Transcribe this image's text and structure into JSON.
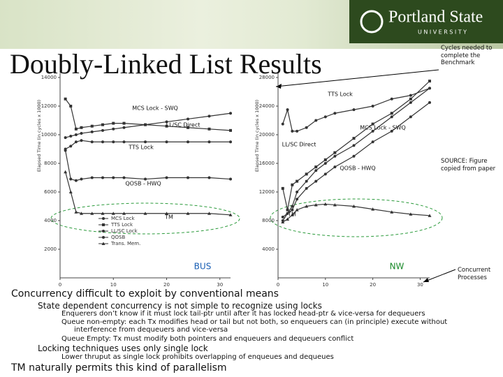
{
  "slide": {
    "title": "Doubly-Linked List Results",
    "logo": {
      "name": "Portland State",
      "sub": "UNIVERSITY"
    },
    "notes": [
      "Cycles needed to complete the Benchmark",
      "SOURCE: Figure copied from paper",
      "Concurrent Processes"
    ],
    "bullets": [
      {
        "level": 0,
        "text": "Concurrency difficult to exploit by conventional means"
      },
      {
        "level": 1,
        "text": "State dependent concurrency is not simple to recognize using locks"
      },
      {
        "level": 2,
        "text": "Enquerers don’t know if it must lock tail-ptr until after it has locked head-ptr & vice-versa for dequeuers"
      },
      {
        "level": 2,
        "text": "Queue non-empty: each Tx modifies head or tail but not both, so enqueuers can (in principle) execute without interference from dequeuers and vice-versa"
      },
      {
        "level": 2,
        "text": "Queue Empty: Tx must modify both pointers and enqueuers and dequeuers conflict"
      },
      {
        "level": 1,
        "text": "Locking techniques uses only single lock"
      },
      {
        "level": 2,
        "text": "Lower thruput as single lock prohibits overlapping of enqueues and dequeues"
      },
      {
        "level": 0,
        "text": "TM naturally permits this kind of parallelism"
      }
    ]
  },
  "chart_data": [
    {
      "type": "line",
      "ylabel": "Elapsed Time (in cycles x 1000)",
      "xlim": [
        0,
        32
      ],
      "xticks": [
        0,
        10,
        20,
        30
      ],
      "ylim": [
        0,
        14000
      ],
      "yticks": [
        2000,
        4000,
        6000,
        8000,
        10000,
        12000,
        14000
      ],
      "legend": "lower left",
      "x": [
        1,
        2,
        3,
        4,
        6,
        8,
        10,
        12,
        16,
        20,
        24,
        28,
        32
      ],
      "series": [
        {
          "name": "MCS Lock",
          "color": "#333333",
          "values": [
            9800,
            9900,
            10000,
            10100,
            10200,
            10300,
            10400,
            10500,
            10700,
            10900,
            11100,
            11300,
            11500
          ]
        },
        {
          "name": "TTS Lock",
          "color": "#333333",
          "values": [
            12500,
            12000,
            10400,
            10500,
            10600,
            10700,
            10800,
            10800,
            10700,
            10600,
            10500,
            10400,
            10300
          ]
        },
        {
          "name": "LL/SC Lock",
          "color": "#333333",
          "values": [
            9000,
            9200,
            9500,
            9600,
            9500,
            9500,
            9500,
            9500,
            9500,
            9500,
            9500,
            9500,
            9500
          ]
        },
        {
          "name": "QOSB",
          "color": "#333333",
          "values": [
            8900,
            6900,
            6800,
            6900,
            7000,
            7000,
            7000,
            7000,
            6900,
            7000,
            7000,
            7000,
            6900
          ]
        },
        {
          "name": "Trans. Mem.",
          "color": "#333333",
          "values": [
            7400,
            6000,
            4600,
            4500,
            4500,
            4500,
            4500,
            4500,
            4500,
            4500,
            4500,
            4500,
            4400
          ]
        }
      ],
      "annotations": [
        {
          "text": "MCS Lock - SWQ"
        },
        {
          "text": "LL/SC Direct"
        },
        {
          "text": "TTS Lock"
        },
        {
          "text": "QOSB - HWQ"
        },
        {
          "text": "TM"
        },
        {
          "text": "BUS",
          "color": "#1a5fb4"
        }
      ]
    },
    {
      "type": "line",
      "ylabel": "Elapsed Time (in cycles x 1000)",
      "xlim": [
        0,
        32
      ],
      "xticks": [
        0,
        10,
        20,
        30
      ],
      "ylim": [
        0,
        28000
      ],
      "yticks": [
        4000,
        8000,
        12000,
        16000,
        20000,
        24000,
        28000
      ],
      "x": [
        1,
        2,
        3,
        4,
        6,
        8,
        10,
        12,
        16,
        20,
        24,
        28,
        32
      ],
      "series": [
        {
          "color": "#333333",
          "values": [
            21500,
            23500,
            20500,
            20500,
            21000,
            22000,
            22500,
            23000,
            23500,
            24000,
            25000,
            25500,
            26500
          ]
        },
        {
          "color": "#333333",
          "values": [
            12500,
            9500,
            13000,
            13500,
            14500,
            15500,
            16500,
            17500,
            19500,
            21500,
            23000,
            25000,
            27500
          ]
        },
        {
          "color": "#333333",
          "values": [
            8000,
            9000,
            10000,
            12000,
            13500,
            15000,
            16000,
            17000,
            18500,
            20500,
            22500,
            24500,
            26500
          ]
        },
        {
          "color": "#333333",
          "values": [
            8500,
            9000,
            9500,
            11000,
            12500,
            13500,
            14500,
            15500,
            17000,
            19000,
            20500,
            22500,
            24500
          ]
        },
        {
          "color": "#333333",
          "values": [
            7800,
            8200,
            8800,
            9500,
            10000,
            10200,
            10300,
            10200,
            10000,
            9600,
            9200,
            8900,
            8700
          ]
        }
      ],
      "annotations": [
        {
          "text": "TTS Lock"
        },
        {
          "text": "MCS Lock - SWQ"
        },
        {
          "text": "LL/SC Direct"
        },
        {
          "text": "QOSB - HWQ"
        },
        {
          "text": "TM"
        },
        {
          "text": "NW",
          "color": "#1a8a2a"
        }
      ]
    }
  ]
}
